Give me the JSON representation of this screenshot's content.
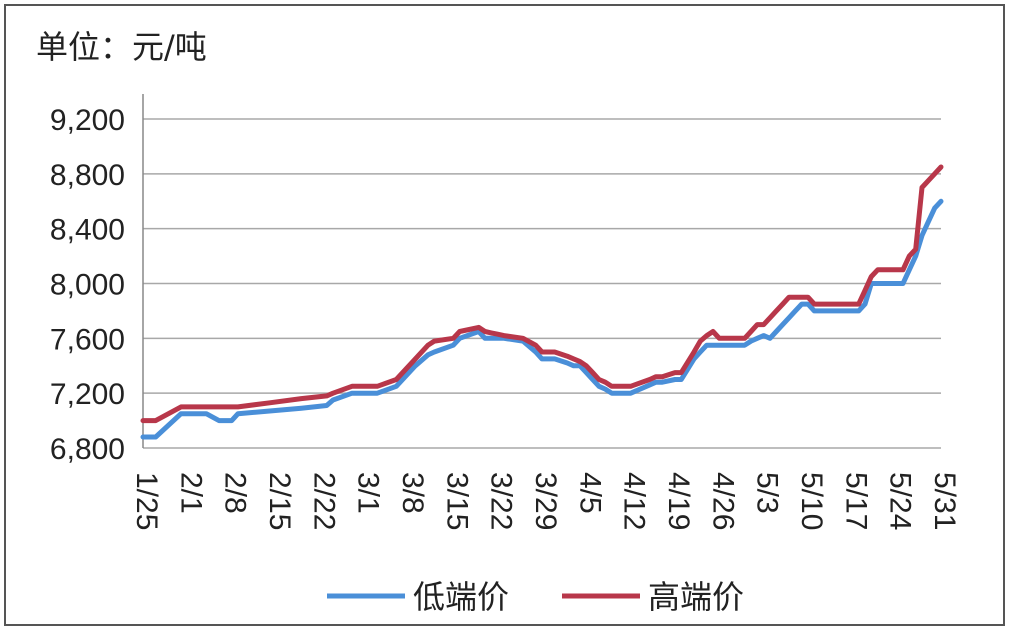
{
  "unit_label": "单位：元/吨",
  "chart_data": {
    "type": "line",
    "ylim": [
      6800,
      9200
    ],
    "yticks": [
      "6,800",
      "7,200",
      "7,600",
      "8,000",
      "8,400",
      "8,800",
      "9,200"
    ],
    "ytick_values": [
      6800,
      7200,
      7600,
      8000,
      8400,
      8800,
      9200
    ],
    "xticks": [
      "1/25",
      "2/1",
      "2/8",
      "2/15",
      "2/22",
      "3/1",
      "3/8",
      "3/15",
      "3/22",
      "3/29",
      "4/5",
      "4/12",
      "4/19",
      "4/26",
      "5/3",
      "5/10",
      "5/17",
      "5/24",
      "5/31"
    ],
    "grid": true,
    "legend_position": "bottom",
    "series": [
      {
        "name": "低端价",
        "color": "#4a8fd8",
        "x": [
          0,
          2,
          6,
          10,
          12,
          14,
          15,
          20,
          25,
          29,
          30,
          33,
          35,
          36,
          37,
          40,
          43,
          45,
          46,
          49,
          50,
          53,
          54,
          55,
          56,
          57,
          60,
          62,
          63,
          65,
          67,
          68,
          69,
          70,
          71,
          72,
          73,
          74,
          75,
          77,
          80,
          81,
          82,
          84,
          85,
          87,
          88,
          89,
          90,
          91,
          92,
          93,
          94,
          95,
          96,
          97,
          98,
          99,
          100,
          101,
          102,
          103,
          104,
          105,
          106,
          107,
          108,
          109,
          110,
          111,
          112,
          113,
          114,
          115,
          116,
          117,
          118,
          119,
          120,
          121,
          122,
          123,
          124,
          125,
          126
        ],
        "values": [
          6880,
          6880,
          7050,
          7050,
          7000,
          7000,
          7050,
          7070,
          7090,
          7110,
          7150,
          7200,
          7200,
          7200,
          7200,
          7250,
          7400,
          7480,
          7500,
          7550,
          7600,
          7650,
          7600,
          7600,
          7600,
          7600,
          7580,
          7500,
          7450,
          7450,
          7420,
          7400,
          7400,
          7350,
          7300,
          7250,
          7230,
          7200,
          7200,
          7200,
          7260,
          7280,
          7280,
          7300,
          7300,
          7450,
          7500,
          7550,
          7550,
          7550,
          7550,
          7550,
          7550,
          7550,
          7580,
          7600,
          7620,
          7600,
          7650,
          7700,
          7750,
          7800,
          7850,
          7850,
          7800,
          7800,
          7800,
          7800,
          7800,
          7800,
          7800,
          7800,
          7850,
          8000,
          8000,
          8000,
          8000,
          8000,
          8000,
          8100,
          8200,
          8350,
          8450,
          8550,
          8600
        ]
      },
      {
        "name": "高端价",
        "color": "#b8374a",
        "x": [
          0,
          2,
          6,
          10,
          12,
          14,
          15,
          20,
          25,
          29,
          30,
          33,
          35,
          36,
          37,
          40,
          43,
          45,
          46,
          49,
          50,
          53,
          54,
          55,
          56,
          57,
          60,
          62,
          63,
          65,
          67,
          68,
          69,
          70,
          71,
          72,
          73,
          74,
          75,
          77,
          80,
          81,
          82,
          84,
          85,
          87,
          88,
          89,
          90,
          91,
          92,
          93,
          94,
          95,
          96,
          97,
          98,
          99,
          100,
          101,
          102,
          103,
          104,
          105,
          106,
          107,
          108,
          109,
          110,
          111,
          112,
          113,
          114,
          115,
          116,
          117,
          118,
          119,
          120,
          121,
          122,
          123,
          124,
          125,
          126
        ],
        "values": [
          7000,
          7000,
          7100,
          7100,
          7100,
          7100,
          7100,
          7130,
          7160,
          7180,
          7200,
          7250,
          7250,
          7250,
          7250,
          7300,
          7450,
          7550,
          7580,
          7600,
          7650,
          7680,
          7650,
          7640,
          7630,
          7620,
          7600,
          7550,
          7500,
          7500,
          7470,
          7450,
          7430,
          7400,
          7350,
          7300,
          7280,
          7250,
          7250,
          7250,
          7300,
          7320,
          7320,
          7350,
          7350,
          7500,
          7580,
          7620,
          7650,
          7600,
          7600,
          7600,
          7600,
          7600,
          7650,
          7700,
          7700,
          7750,
          7800,
          7850,
          7900,
          7900,
          7900,
          7900,
          7850,
          7850,
          7850,
          7850,
          7850,
          7850,
          7850,
          7850,
          7950,
          8050,
          8100,
          8100,
          8100,
          8100,
          8100,
          8200,
          8250,
          8700,
          8750,
          8800,
          8850
        ]
      }
    ]
  }
}
